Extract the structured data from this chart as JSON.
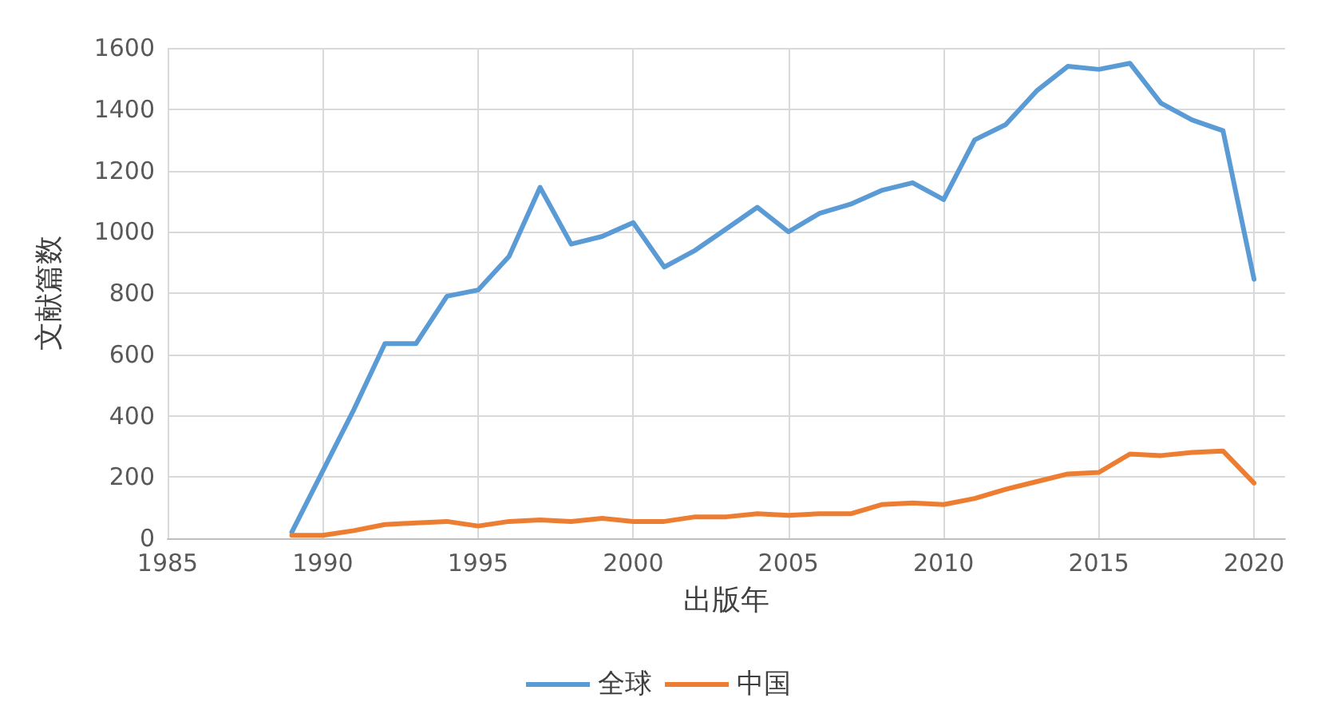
{
  "chart_data": {
    "type": "line",
    "xlabel": "出版年",
    "ylabel": "文献篇数",
    "x": [
      1989,
      1990,
      1991,
      1992,
      1993,
      1994,
      1995,
      1996,
      1997,
      1998,
      1999,
      2000,
      2001,
      2002,
      2003,
      2004,
      2005,
      2006,
      2007,
      2008,
      2009,
      2010,
      2011,
      2012,
      2013,
      2014,
      2015,
      2016,
      2017,
      2018,
      2019,
      2020
    ],
    "series": [
      {
        "name": "全球",
        "color": "#5b9bd5",
        "values": [
          20,
          220,
          420,
          635,
          635,
          790,
          810,
          920,
          1145,
          960,
          985,
          1030,
          885,
          940,
          1010,
          1080,
          1000,
          1060,
          1090,
          1135,
          1160,
          1105,
          1300,
          1350,
          1460,
          1540,
          1530,
          1550,
          1420,
          1365,
          1330,
          845
        ]
      },
      {
        "name": "中国",
        "color": "#ed7d31",
        "values": [
          10,
          10,
          25,
          45,
          50,
          55,
          40,
          55,
          60,
          55,
          65,
          55,
          55,
          70,
          70,
          80,
          75,
          80,
          80,
          110,
          115,
          110,
          130,
          160,
          185,
          210,
          215,
          275,
          270,
          280,
          285,
          180
        ]
      }
    ],
    "xlim": [
      1985,
      2021
    ],
    "xticks": [
      1985,
      1990,
      1995,
      2000,
      2005,
      2010,
      2015,
      2020
    ],
    "ylim": [
      0,
      1600
    ],
    "yticks": [
      0,
      200,
      400,
      600,
      800,
      1000,
      1200,
      1400,
      1600
    ],
    "grid": true,
    "legend": "bottom",
    "marker": "none",
    "line_style": "solid"
  }
}
